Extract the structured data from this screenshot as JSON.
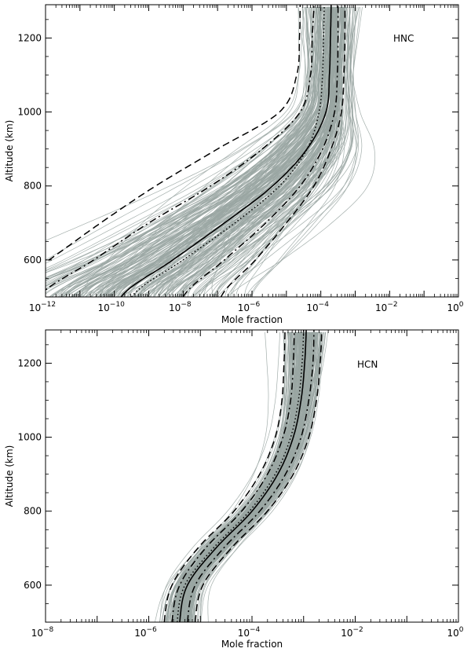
{
  "chart_data": [
    {
      "type": "line",
      "label": "HNC",
      "xlabel": "Mole fraction",
      "ylabel": "Altitude (km)",
      "xscale": "log",
      "xlim": [
        1e-12,
        1
      ],
      "ylim": [
        500,
        1290
      ],
      "x_ticks": [
        {
          "base": "10",
          "exp": "−12"
        },
        {
          "base": "10",
          "exp": "−10"
        },
        {
          "base": "10",
          "exp": "−8"
        },
        {
          "base": "10",
          "exp": "−6"
        },
        {
          "base": "10",
          "exp": "−4"
        },
        {
          "base": "10",
          "exp": "−2"
        },
        {
          "base": "10",
          "exp": "0"
        }
      ],
      "y_ticks": [
        "600",
        "800",
        "1000",
        "1200"
      ],
      "ensemble_color": "#9aa6a3",
      "altitudes": [
        500,
        600,
        700,
        800,
        900,
        1000,
        1100,
        1200,
        1290
      ],
      "series": [
        {
          "role": "mean",
          "style": "solid",
          "log10_x": [
            -9.8,
            -8.3,
            -6.8,
            -5.4,
            -4.4,
            -3.85,
            -3.75,
            -3.72,
            -3.7
          ]
        },
        {
          "role": "median",
          "style": "dotted",
          "log10_x": [
            -9.5,
            -8.0,
            -6.5,
            -5.2,
            -4.4,
            -4.05,
            -3.95,
            -3.92,
            -3.9
          ]
        },
        {
          "role": "inner-envelope",
          "style": "dashdot",
          "log10_x": [
            -12.2,
            -10.6,
            -9.0,
            -7.2,
            -5.7,
            -4.6,
            -4.3,
            -4.25,
            -4.2
          ]
        },
        {
          "role": "inner-envelope",
          "style": "dashdot",
          "log10_x": [
            -8.0,
            -6.8,
            -5.6,
            -4.6,
            -3.95,
            -3.6,
            -3.52,
            -3.5,
            -3.5
          ]
        },
        {
          "role": "outer-envelope",
          "style": "dashed",
          "log10_x": [
            -13.5,
            -11.9,
            -10.4,
            -8.8,
            -7.0,
            -5.2,
            -4.7,
            -4.62,
            -4.6
          ]
        },
        {
          "role": "outer-envelope",
          "style": "dashed",
          "log10_x": [
            -6.9,
            -5.9,
            -5.0,
            -4.2,
            -3.7,
            -3.4,
            -3.33,
            -3.3,
            -3.3
          ]
        }
      ]
    },
    {
      "type": "line",
      "label": "HCN",
      "xlabel": "Mole fraction",
      "ylabel": "Altitude (km)",
      "xscale": "log",
      "xlim": [
        1e-08,
        1
      ],
      "ylim": [
        500,
        1290
      ],
      "x_ticks": [
        {
          "base": "10",
          "exp": "−8"
        },
        {
          "base": "10",
          "exp": "−6"
        },
        {
          "base": "10",
          "exp": "−4"
        },
        {
          "base": "10",
          "exp": "−2"
        },
        {
          "base": "10",
          "exp": "0"
        }
      ],
      "y_ticks": [
        "600",
        "800",
        "1000",
        "1200"
      ],
      "ensemble_color": "#9aa6a3",
      "altitudes": [
        500,
        600,
        700,
        800,
        900,
        1000,
        1100,
        1200,
        1290
      ],
      "series": [
        {
          "role": "mean",
          "style": "solid",
          "log10_x": [
            -5.4,
            -5.25,
            -4.7,
            -4.0,
            -3.5,
            -3.2,
            -3.05,
            -2.98,
            -2.95
          ]
        },
        {
          "role": "median",
          "style": "dotted",
          "log10_x": [
            -5.45,
            -5.3,
            -4.75,
            -4.05,
            -3.55,
            -3.25,
            -3.1,
            -3.03,
            -3.0
          ]
        },
        {
          "role": "inner-envelope",
          "style": "dashdot",
          "log10_x": [
            -5.55,
            -5.4,
            -4.9,
            -4.2,
            -3.7,
            -3.4,
            -3.25,
            -3.2,
            -3.18
          ]
        },
        {
          "role": "inner-envelope",
          "style": "dashdot",
          "log10_x": [
            -5.25,
            -5.1,
            -4.55,
            -3.85,
            -3.35,
            -3.05,
            -2.9,
            -2.82,
            -2.8
          ]
        },
        {
          "role": "outer-envelope",
          "style": "dashed",
          "log10_x": [
            -5.7,
            -5.55,
            -5.05,
            -4.35,
            -3.85,
            -3.55,
            -3.42,
            -3.38,
            -3.36
          ]
        },
        {
          "role": "outer-envelope",
          "style": "dashed",
          "log10_x": [
            -5.1,
            -4.95,
            -4.4,
            -3.7,
            -3.2,
            -2.9,
            -2.75,
            -2.68,
            -2.65
          ]
        }
      ]
    }
  ]
}
